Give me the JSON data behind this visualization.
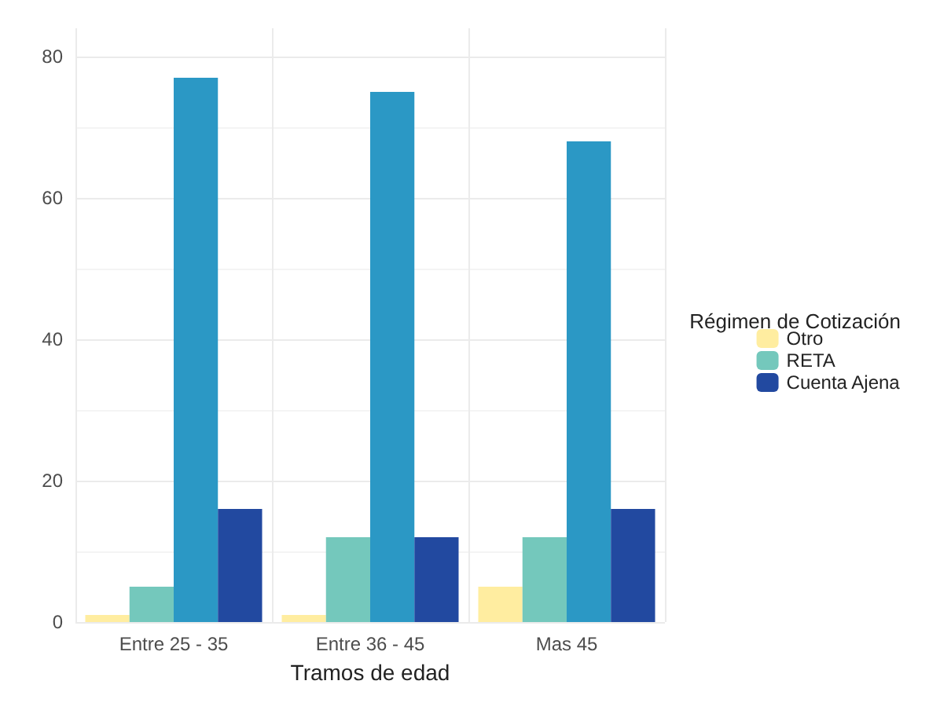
{
  "chart_data": {
    "type": "bar",
    "xlabel": "Tramos de edad",
    "legend_title": "Régimen de Cotización",
    "categories": [
      "Entre 25 - 35",
      "Entre 36 - 45",
      "Mas 45"
    ],
    "series": [
      {
        "name": "Otro",
        "color": "#ffeda0",
        "values": [
          1,
          1,
          5
        ]
      },
      {
        "name": "RETA",
        "color": "#74c8bc",
        "values": [
          5,
          12,
          12
        ]
      },
      {
        "color": "#2b98c5",
        "values": [
          77,
          75,
          68
        ]
      },
      {
        "name": "Cuenta Ajena",
        "color": "#2249a0",
        "values": [
          16,
          12,
          16
        ]
      }
    ],
    "ylim": [
      0,
      84
    ],
    "yticks": [
      0,
      20,
      40,
      60,
      80
    ],
    "grid": true,
    "legend": "right"
  }
}
